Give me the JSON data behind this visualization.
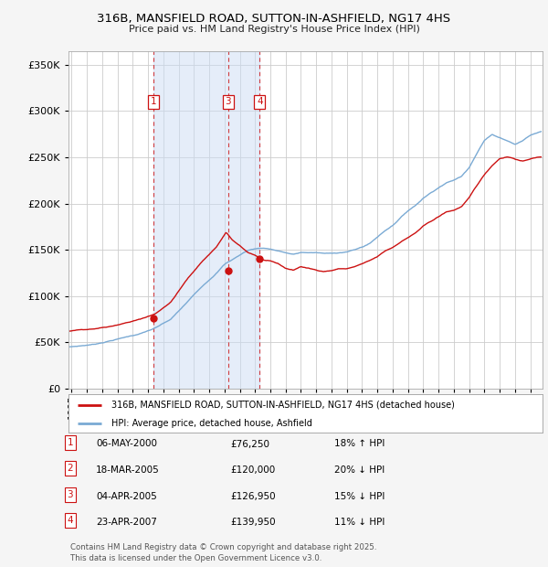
{
  "title": "316B, MANSFIELD ROAD, SUTTON-IN-ASHFIELD, NG17 4HS",
  "subtitle": "Price paid vs. HM Land Registry's House Price Index (HPI)",
  "ylabel_ticks": [
    0,
    50000,
    100000,
    150000,
    200000,
    250000,
    300000,
    350000
  ],
  "ylim": [
    0,
    365000
  ],
  "xlim_start": 1994.8,
  "xlim_end": 2025.8,
  "hpi_color": "#7aaad4",
  "price_color": "#cc1111",
  "background_color": "#f5f5f5",
  "plot_bg": "#ffffff",
  "grid_color": "#cccccc",
  "shade_color": "#ccddf5",
  "sale_points": [
    {
      "num": "1",
      "year": 2000.36,
      "price": 76250
    },
    {
      "num": "3",
      "year": 2005.25,
      "price": 126950
    },
    {
      "num": "4",
      "year": 2007.3,
      "price": 139950
    }
  ],
  "shade_start": 2000.36,
  "shade_end": 2007.3,
  "legend_line1": "316B, MANSFIELD ROAD, SUTTON-IN-ASHFIELD, NG17 4HS (detached house)",
  "legend_line2": "HPI: Average price, detached house, Ashfield",
  "table_rows": [
    {
      "num": "1",
      "date": "06-MAY-2000",
      "price": "£76,250",
      "hpi": "18% ↑ HPI"
    },
    {
      "num": "2",
      "date": "18-MAR-2005",
      "price": "£120,000",
      "hpi": "20% ↓ HPI"
    },
    {
      "num": "3",
      "date": "04-APR-2005",
      "price": "£126,950",
      "hpi": "15% ↓ HPI"
    },
    {
      "num": "4",
      "date": "23-APR-2007",
      "price": "£139,950",
      "hpi": "11% ↓ HPI"
    }
  ],
  "footer": "Contains HM Land Registry data © Crown copyright and database right 2025.\nThis data is licensed under the Open Government Licence v3.0."
}
